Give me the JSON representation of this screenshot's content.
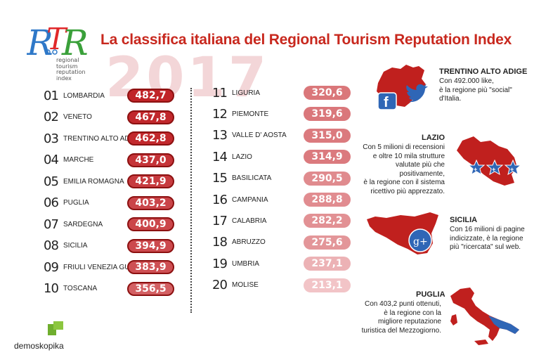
{
  "logo": {
    "letters": "RTR",
    "subtitle_lines": [
      "regional",
      "tourism",
      "reputation",
      "index"
    ]
  },
  "title": "La classifica italiana del Regional Tourism Reputation Index",
  "year": "2017",
  "rankings_left": [
    {
      "rank": "01",
      "region": "LOMBARDIA",
      "score": "482,7"
    },
    {
      "rank": "02",
      "region": "VENETO",
      "score": "467,8"
    },
    {
      "rank": "03",
      "region": "TRENTINO ALTO ADIGE",
      "score": "462,8"
    },
    {
      "rank": "04",
      "region": "MARCHE",
      "score": "437,0"
    },
    {
      "rank": "05",
      "region": "EMILIA ROMAGNA",
      "score": "421,9"
    },
    {
      "rank": "06",
      "region": "PUGLIA",
      "score": "403,2"
    },
    {
      "rank": "07",
      "region": "SARDEGNA",
      "score": "400,9"
    },
    {
      "rank": "08",
      "region": "SICILIA",
      "score": "394,9"
    },
    {
      "rank": "09",
      "region": "FRIULI VENEZIA GULIA",
      "score": "383,9"
    },
    {
      "rank": "10",
      "region": "TOSCANA",
      "score": "356,5"
    }
  ],
  "rankings_right": [
    {
      "rank": "11",
      "region": "LIGURIA",
      "score": "320,6"
    },
    {
      "rank": "12",
      "region": "PIEMONTE",
      "score": "319,6"
    },
    {
      "rank": "13",
      "region": "VALLE D' AOSTA",
      "score": "315,0"
    },
    {
      "rank": "14",
      "region": "LAZIO",
      "score": "314,9"
    },
    {
      "rank": "15",
      "region": "BASILICATA",
      "score": "290,5"
    },
    {
      "rank": "16",
      "region": "CAMPANIA",
      "score": "288,8"
    },
    {
      "rank": "17",
      "region": "CALABRIA",
      "score": "282,2"
    },
    {
      "rank": "18",
      "region": "ABRUZZO",
      "score": "275,6"
    },
    {
      "rank": "19",
      "region": "UMBRIA",
      "score": "237,1"
    },
    {
      "rank": "20",
      "region": "MOLISE",
      "score": "213,1"
    }
  ],
  "colors": {
    "accent": "#c8281e",
    "pill_dark": "#c0282c",
    "pill_light": "#f2c9cb",
    "map_red": "#c0201e",
    "badge_blue": "#2f66b6"
  },
  "highlights": {
    "trentino": {
      "title": "TRENTINO ALTO ADIGE",
      "lines": [
        "Con 492.000 like,",
        "è la regione più \"social\"",
        "d'Italia."
      ]
    },
    "lazio": {
      "title": "LAZIO",
      "lines": [
        "Con 5 milioni di recensioni",
        "e oltre 10 mila strutture",
        "valutate più che positivamente,",
        "è la regione con il sistema",
        "ricettivo più apprezzato."
      ]
    },
    "sicilia": {
      "title": "SICILIA",
      "lines": [
        "Con 16 milioni di pagine",
        "indicizzate, è la regione",
        "più \"ricercata\" sul web."
      ]
    },
    "puglia": {
      "title": "PUGLIA",
      "lines": [
        "Con 403,2 punti ottenuti,",
        "è la regione con la",
        "migliore reputazione",
        "turistica del Mezzogiorno."
      ]
    }
  },
  "brand": "demoskopika"
}
